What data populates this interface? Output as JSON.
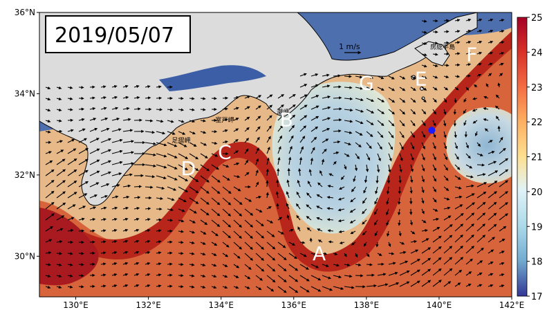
{
  "date_label": "2019/05/07",
  "scale_label": "1 m/s",
  "axes": {
    "x_ticks": [
      "130°E",
      "132°E",
      "134°E",
      "136°E",
      "138°E",
      "140°E",
      "142°E"
    ],
    "y_ticks": [
      "36°N",
      "34°N",
      "32°N",
      "30°N"
    ]
  },
  "colorbar": {
    "min": 17,
    "max": 25,
    "ticks": [
      "25",
      "24",
      "23",
      "22",
      "21",
      "20",
      "19",
      "18",
      "17"
    ],
    "colors": [
      "#a50026",
      "#d73027",
      "#f46d43",
      "#fdae61",
      "#fee090",
      "#e0f3f8",
      "#abd9e9",
      "#74add1",
      "#4575b4",
      "#313695"
    ]
  },
  "features": [
    {
      "label": "A",
      "lon": 136.7,
      "lat": 29.9
    },
    {
      "label": "B",
      "lon": 135.8,
      "lat": 33.2
    },
    {
      "label": "C",
      "lon": 134.1,
      "lat": 32.4
    },
    {
      "label": "D",
      "lon": 133.1,
      "lat": 32.0
    },
    {
      "label": "E",
      "lon": 139.5,
      "lat": 34.2
    },
    {
      "label": "F",
      "lon": 140.9,
      "lat": 34.8
    },
    {
      "label": "G",
      "lon": 138.0,
      "lat": 34.1
    }
  ],
  "place_names": [
    {
      "name": "室戸岬",
      "lon": 134.1,
      "lat": 33.3
    },
    {
      "name": "足摺岬",
      "lon": 132.9,
      "lat": 32.8
    },
    {
      "name": "潮岬",
      "lon": 135.7,
      "lat": 33.5
    },
    {
      "name": "房総半島",
      "lon": 140.1,
      "lat": 35.1
    }
  ],
  "marker": {
    "name": "station",
    "lon": 139.8,
    "lat": 33.1,
    "color": "#1a1aff"
  },
  "colors": {
    "land": "#dcdcdc",
    "warm": "#c0341d",
    "cold": "#abc9de",
    "coast": "#000000"
  }
}
